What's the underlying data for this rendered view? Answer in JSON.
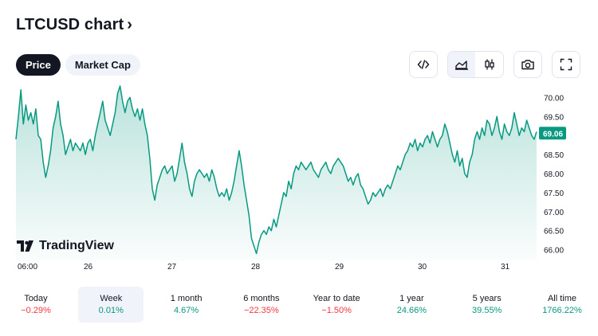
{
  "header": {
    "title": "LTCUSD chart",
    "chevron": "›"
  },
  "tabs": [
    {
      "label": "Price",
      "active": true
    },
    {
      "label": "Market Cap",
      "active": false
    }
  ],
  "toolbar": {
    "icons": [
      "embed-code-icon",
      "area-chart-icon",
      "candlestick-icon",
      "camera-icon",
      "fullscreen-icon"
    ]
  },
  "branding": {
    "name": "TradingView"
  },
  "colors": {
    "line": "#089981",
    "fill": "#089981",
    "price_tag_bg": "#089981",
    "negative": "#f23645",
    "positive": "#089981"
  },
  "chart_data": {
    "type": "area",
    "x_ticks": [
      "06:00",
      "26",
      "27",
      "28",
      "29",
      "30",
      "31"
    ],
    "y_ticks": [
      "70.00",
      "69.50",
      "69.00",
      "68.50",
      "68.00",
      "67.50",
      "67.00",
      "66.50",
      "66.00"
    ],
    "ylim": [
      65.7,
      70.3
    ],
    "current_price": "69.06",
    "series": [
      {
        "values": [
          68.9,
          69.5,
          70.2,
          69.3,
          69.8,
          69.4,
          69.6,
          69.3,
          69.7,
          69.0,
          68.9,
          68.3,
          67.9,
          68.2,
          68.6,
          69.2,
          69.5,
          69.9,
          69.3,
          69.0,
          68.5,
          68.7,
          68.9,
          68.6,
          68.8,
          68.7,
          68.6,
          68.8,
          68.5,
          68.8,
          68.9,
          68.6,
          69.0,
          69.3,
          69.6,
          69.9,
          69.4,
          69.2,
          69.0,
          69.3,
          69.6,
          70.1,
          70.3,
          69.9,
          69.6,
          69.9,
          70.0,
          69.7,
          69.5,
          69.7,
          69.4,
          69.7,
          69.3,
          69.0,
          68.4,
          67.6,
          67.3,
          67.7,
          67.9,
          68.1,
          68.2,
          68.0,
          68.1,
          68.2,
          67.8,
          68.0,
          68.4,
          68.8,
          68.3,
          68.0,
          67.6,
          67.4,
          67.8,
          68.0,
          68.1,
          68.0,
          67.9,
          68.0,
          67.8,
          68.1,
          67.9,
          67.6,
          67.4,
          67.5,
          67.4,
          67.6,
          67.3,
          67.5,
          67.8,
          68.2,
          68.6,
          68.2,
          67.7,
          67.3,
          66.9,
          66.3,
          66.1,
          65.9,
          66.2,
          66.4,
          66.5,
          66.4,
          66.6,
          66.5,
          66.8,
          66.6,
          66.9,
          67.2,
          67.5,
          67.4,
          67.8,
          67.6,
          68.0,
          68.2,
          68.1,
          68.3,
          68.2,
          68.1,
          68.2,
          68.3,
          68.1,
          68.0,
          67.9,
          68.1,
          68.2,
          68.3,
          68.1,
          68.0,
          68.2,
          68.3,
          68.4,
          68.3,
          68.2,
          68.0,
          67.8,
          67.9,
          67.7,
          67.9,
          68.0,
          67.7,
          67.6,
          67.4,
          67.2,
          67.3,
          67.5,
          67.4,
          67.5,
          67.6,
          67.4,
          67.6,
          67.7,
          67.6,
          67.8,
          68.0,
          68.2,
          68.1,
          68.3,
          68.5,
          68.6,
          68.8,
          68.7,
          68.9,
          68.6,
          68.8,
          68.7,
          68.9,
          69.0,
          68.8,
          69.1,
          68.9,
          68.7,
          68.9,
          69.0,
          69.3,
          69.1,
          68.8,
          68.5,
          68.3,
          68.6,
          68.2,
          68.4,
          68.0,
          67.9,
          68.3,
          68.5,
          68.9,
          69.1,
          68.9,
          69.2,
          69.0,
          69.4,
          69.3,
          69.0,
          69.2,
          69.5,
          69.1,
          68.9,
          69.3,
          69.1,
          69.0,
          69.2,
          69.6,
          69.3,
          69.0,
          69.2,
          69.1,
          69.4,
          69.2,
          69.0,
          68.9,
          69.1
        ]
      }
    ]
  },
  "periods": [
    {
      "label": "Today",
      "value": "−0.29%",
      "trend": "neg",
      "selected": false
    },
    {
      "label": "Week",
      "value": "0.01%",
      "trend": "flat",
      "selected": true
    },
    {
      "label": "1 month",
      "value": "4.67%",
      "trend": "pos",
      "selected": false
    },
    {
      "label": "6 months",
      "value": "−22.35%",
      "trend": "neg",
      "selected": false
    },
    {
      "label": "Year to date",
      "value": "−1.50%",
      "trend": "neg",
      "selected": false
    },
    {
      "label": "1 year",
      "value": "24.66%",
      "trend": "pos",
      "selected": false
    },
    {
      "label": "5 years",
      "value": "39.55%",
      "trend": "pos",
      "selected": false
    },
    {
      "label": "All time",
      "value": "1766.22%",
      "trend": "pos",
      "selected": false
    }
  ]
}
